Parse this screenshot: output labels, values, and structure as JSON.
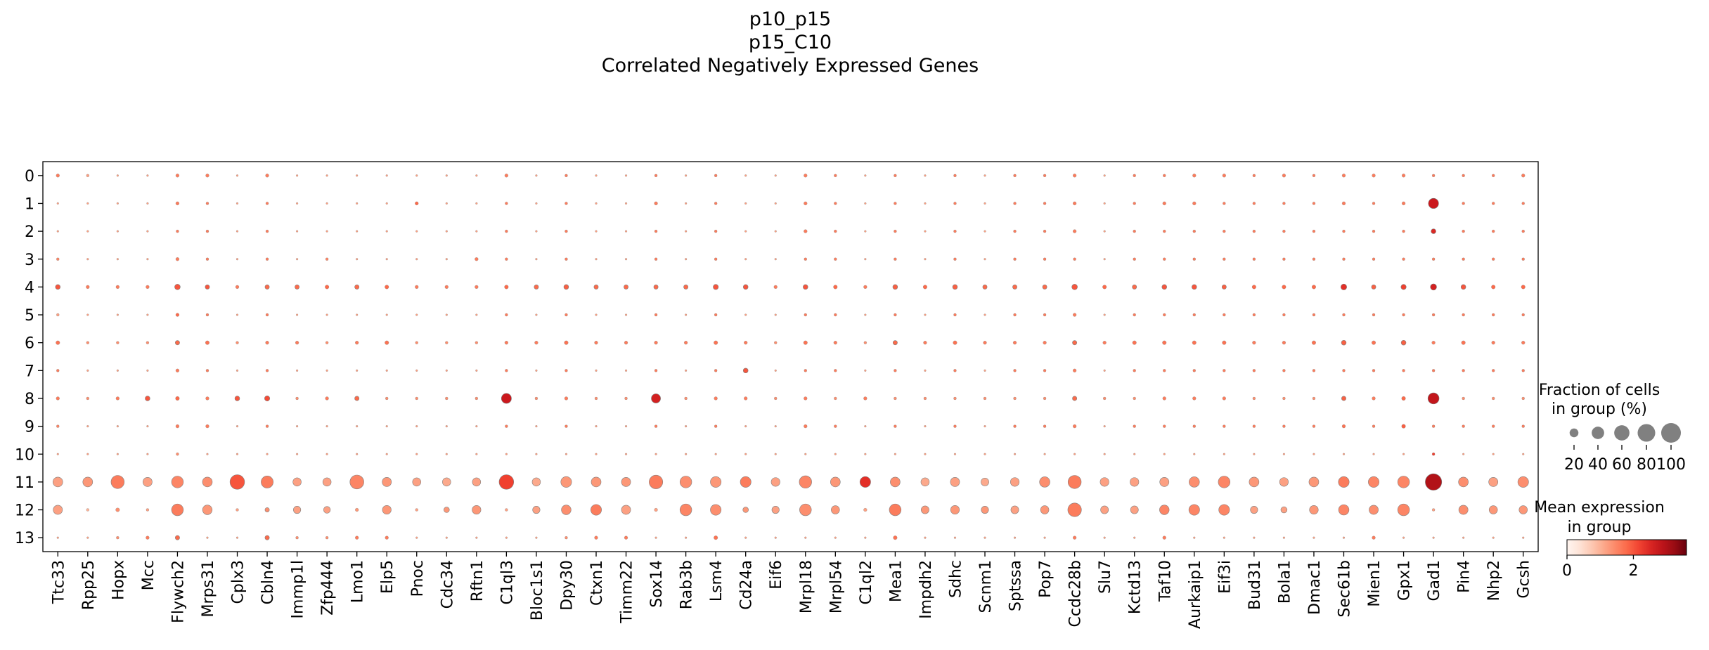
{
  "chart_data": {
    "type": "dotplot",
    "title_lines": [
      "p10_p15",
      "p15_C10",
      "Correlated Negatively Expressed Genes"
    ],
    "genes": [
      "Ttc33",
      "Rpp25",
      "Hopx",
      "Mcc",
      "Flywch2",
      "Mrps31",
      "Cplx3",
      "Cbln4",
      "Immp1l",
      "Zfp444",
      "Lmo1",
      "Elp5",
      "Pnoc",
      "Cdc34",
      "Rftn1",
      "C1ql3",
      "Bloc1s1",
      "Dpy30",
      "Ctxn1",
      "Timm22",
      "Sox14",
      "Rab3b",
      "Lsm4",
      "Cd24a",
      "Eif6",
      "Mrpl18",
      "Mrpl54",
      "C1ql2",
      "Mea1",
      "Impdh2",
      "Sdhc",
      "Scnm1",
      "Sptssa",
      "Pop7",
      "Ccdc28b",
      "Slu7",
      "Kctd13",
      "Taf10",
      "Aurkaip1",
      "Eif3i",
      "Bud31",
      "Bola1",
      "Dmac1",
      "Sec61b",
      "Mien1",
      "Gpx1",
      "Gad1",
      "Pin4",
      "Nhp2",
      "Gcsh"
    ],
    "groups": [
      "0",
      "1",
      "2",
      "3",
      "4",
      "5",
      "6",
      "7",
      "8",
      "9",
      "10",
      "11",
      "12",
      "13"
    ],
    "fraction_matrix": [
      [
        3,
        2,
        1,
        1,
        3,
        3,
        1,
        3,
        1,
        1,
        1,
        1,
        1,
        1,
        1,
        3,
        1,
        2,
        1,
        1,
        2,
        1,
        2,
        1,
        1,
        3,
        2,
        1,
        2,
        1,
        2,
        1,
        2,
        2,
        3,
        1,
        2,
        2,
        3,
        3,
        2,
        3,
        2,
        3,
        3,
        3,
        2,
        2,
        2,
        3
      ],
      [
        1,
        1,
        1,
        1,
        3,
        2,
        1,
        2,
        1,
        1,
        1,
        1,
        3,
        1,
        1,
        2,
        1,
        2,
        1,
        1,
        3,
        1,
        2,
        1,
        1,
        3,
        2,
        1,
        2,
        1,
        2,
        1,
        2,
        2,
        3,
        1,
        2,
        3,
        3,
        2,
        2,
        2,
        2,
        3,
        2,
        3,
        27,
        2,
        2,
        2
      ],
      [
        1,
        1,
        1,
        1,
        2,
        2,
        1,
        2,
        1,
        1,
        1,
        1,
        1,
        1,
        1,
        2,
        1,
        2,
        1,
        1,
        2,
        1,
        2,
        1,
        1,
        3,
        2,
        1,
        2,
        1,
        2,
        1,
        2,
        2,
        3,
        1,
        2,
        2,
        2,
        2,
        2,
        2,
        2,
        2,
        2,
        2,
        6,
        2,
        2,
        2
      ],
      [
        2,
        1,
        1,
        1,
        3,
        2,
        1,
        2,
        1,
        2,
        1,
        1,
        1,
        1,
        3,
        2,
        1,
        2,
        1,
        1,
        2,
        1,
        2,
        1,
        1,
        2,
        2,
        1,
        2,
        1,
        2,
        1,
        2,
        2,
        2,
        1,
        2,
        2,
        2,
        2,
        2,
        2,
        2,
        2,
        2,
        2,
        2,
        2,
        2,
        2
      ],
      [
        6,
        3,
        3,
        3,
        8,
        5,
        3,
        5,
        5,
        4,
        5,
        4,
        3,
        3,
        3,
        4,
        5,
        6,
        5,
        5,
        5,
        5,
        7,
        6,
        3,
        6,
        4,
        3,
        6,
        4,
        6,
        5,
        5,
        5,
        8,
        4,
        5,
        6,
        6,
        5,
        4,
        4,
        4,
        9,
        5,
        7,
        10,
        6,
        4,
        4
      ],
      [
        2,
        1,
        1,
        1,
        3,
        2,
        1,
        2,
        1,
        1,
        1,
        1,
        1,
        1,
        1,
        2,
        1,
        2,
        1,
        1,
        2,
        1,
        2,
        1,
        1,
        2,
        2,
        1,
        2,
        1,
        2,
        1,
        2,
        2,
        3,
        1,
        2,
        2,
        2,
        2,
        2,
        2,
        2,
        2,
        2,
        2,
        2,
        2,
        2,
        2
      ],
      [
        4,
        2,
        2,
        2,
        5,
        4,
        2,
        3,
        3,
        2,
        3,
        4,
        2,
        2,
        2,
        3,
        3,
        4,
        3,
        3,
        3,
        3,
        4,
        3,
        2,
        4,
        3,
        2,
        5,
        3,
        4,
        3,
        3,
        3,
        5,
        3,
        4,
        4,
        4,
        4,
        3,
        3,
        4,
        6,
        4,
        6,
        3,
        4,
        3,
        3
      ],
      [
        2,
        1,
        1,
        1,
        3,
        2,
        1,
        2,
        1,
        1,
        1,
        1,
        1,
        1,
        1,
        2,
        1,
        2,
        1,
        1,
        2,
        1,
        2,
        6,
        1,
        2,
        2,
        1,
        2,
        1,
        2,
        1,
        2,
        2,
        3,
        1,
        2,
        2,
        2,
        2,
        2,
        2,
        2,
        2,
        2,
        2,
        2,
        2,
        2,
        2
      ],
      [
        3,
        2,
        3,
        6,
        4,
        3,
        6,
        7,
        2,
        3,
        5,
        2,
        2,
        2,
        2,
        26,
        2,
        3,
        2,
        2,
        22,
        2,
        3,
        3,
        2,
        3,
        2,
        3,
        2,
        2,
        2,
        2,
        2,
        2,
        5,
        2,
        2,
        3,
        3,
        3,
        2,
        2,
        2,
        5,
        3,
        4,
        32,
        2,
        2,
        2
      ],
      [
        2,
        1,
        1,
        1,
        3,
        3,
        1,
        2,
        1,
        1,
        1,
        1,
        1,
        1,
        1,
        2,
        1,
        2,
        1,
        1,
        2,
        1,
        2,
        1,
        1,
        3,
        2,
        1,
        2,
        1,
        2,
        1,
        2,
        2,
        3,
        1,
        2,
        2,
        2,
        2,
        2,
        2,
        2,
        3,
        2,
        4,
        2,
        2,
        2,
        2
      ],
      [
        1,
        1,
        1,
        1,
        2,
        1,
        1,
        1,
        1,
        1,
        1,
        1,
        1,
        1,
        1,
        1,
        1,
        1,
        1,
        1,
        1,
        1,
        1,
        1,
        1,
        1,
        1,
        1,
        1,
        1,
        1,
        1,
        1,
        1,
        1,
        1,
        1,
        1,
        1,
        1,
        1,
        1,
        1,
        1,
        1,
        1,
        2,
        1,
        1,
        1
      ],
      [
        25,
        25,
        45,
        22,
        36,
        25,
        55,
        38,
        18,
        18,
        50,
        22,
        18,
        18,
        18,
        55,
        18,
        30,
        25,
        22,
        48,
        36,
        30,
        30,
        20,
        40,
        25,
        30,
        25,
        18,
        22,
        16,
        20,
        28,
        45,
        20,
        20,
        22,
        28,
        36,
        25,
        20,
        25,
        30,
        30,
        36,
        70,
        25,
        22,
        30
      ],
      [
        22,
        2,
        4,
        2,
        36,
        24,
        2,
        5,
        14,
        12,
        3,
        20,
        2,
        8,
        20,
        2,
        14,
        24,
        30,
        22,
        3,
        36,
        30,
        8,
        14,
        36,
        18,
        3,
        36,
        16,
        20,
        14,
        16,
        18,
        48,
        16,
        16,
        24,
        30,
        30,
        14,
        10,
        20,
        28,
        22,
        36,
        2,
        22,
        18,
        18
      ],
      [
        1,
        1,
        2,
        3,
        5,
        1,
        1,
        5,
        2,
        2,
        3,
        3,
        1,
        1,
        1,
        1,
        1,
        2,
        3,
        3,
        1,
        1,
        4,
        1,
        1,
        1,
        1,
        1,
        4,
        1,
        1,
        1,
        1,
        1,
        3,
        1,
        1,
        3,
        1,
        1,
        1,
        1,
        1,
        1,
        3,
        1,
        1,
        1,
        1,
        1
      ]
    ],
    "expression_matrix": [
      [
        1.6,
        1.2,
        1.2,
        1.2,
        1.6,
        1.6,
        1.2,
        1.6,
        1.2,
        1.2,
        1.2,
        1.2,
        1.2,
        1.2,
        1.2,
        1.6,
        1.2,
        1.6,
        1.2,
        1.2,
        1.6,
        1.2,
        1.6,
        1.2,
        1.2,
        1.6,
        1.6,
        1.2,
        1.6,
        1.2,
        1.6,
        1.2,
        1.6,
        1.6,
        1.6,
        1.2,
        1.6,
        1.6,
        1.6,
        1.6,
        1.6,
        1.6,
        1.6,
        1.6,
        1.6,
        1.6,
        1.6,
        1.6,
        1.6,
        1.6
      ],
      [
        1.2,
        1.2,
        1.2,
        1.2,
        1.6,
        1.6,
        1.2,
        1.6,
        1.2,
        1.2,
        1.2,
        1.2,
        1.8,
        1.2,
        1.2,
        1.6,
        1.2,
        1.6,
        1.2,
        1.2,
        1.6,
        1.2,
        1.6,
        1.2,
        1.2,
        1.6,
        1.6,
        1.2,
        1.6,
        1.2,
        1.6,
        1.2,
        1.6,
        1.6,
        1.6,
        1.2,
        1.6,
        1.6,
        1.6,
        1.6,
        1.6,
        1.6,
        1.6,
        1.6,
        1.6,
        1.6,
        2.7,
        1.6,
        1.6,
        1.6
      ],
      [
        1.2,
        1.2,
        1.2,
        1.2,
        1.6,
        1.6,
        1.2,
        1.6,
        1.2,
        1.2,
        1.2,
        1.2,
        1.2,
        1.2,
        1.2,
        1.6,
        1.2,
        1.6,
        1.2,
        1.2,
        1.6,
        1.2,
        1.6,
        1.2,
        1.2,
        1.6,
        1.6,
        1.2,
        1.6,
        1.2,
        1.6,
        1.2,
        1.6,
        1.6,
        1.6,
        1.2,
        1.6,
        1.6,
        1.6,
        1.6,
        1.6,
        1.6,
        1.6,
        1.6,
        1.6,
        1.6,
        2.5,
        1.6,
        1.6,
        1.6
      ],
      [
        1.5,
        1.2,
        1.2,
        1.2,
        1.6,
        1.6,
        1.2,
        1.6,
        1.2,
        1.5,
        1.2,
        1.2,
        1.2,
        1.2,
        1.6,
        1.6,
        1.2,
        1.6,
        1.2,
        1.2,
        1.6,
        1.2,
        1.6,
        1.2,
        1.2,
        1.6,
        1.6,
        1.2,
        1.6,
        1.2,
        1.6,
        1.2,
        1.6,
        1.6,
        1.6,
        1.2,
        1.6,
        1.6,
        1.6,
        1.6,
        1.6,
        1.6,
        1.6,
        1.6,
        1.6,
        1.6,
        1.6,
        1.6,
        1.6,
        1.6
      ],
      [
        2.0,
        1.6,
        1.6,
        1.6,
        2.0,
        2.0,
        1.6,
        1.8,
        1.8,
        1.8,
        1.8,
        1.8,
        1.6,
        1.6,
        1.6,
        1.8,
        1.8,
        1.9,
        1.8,
        1.8,
        1.8,
        1.8,
        2.0,
        2.0,
        1.6,
        2.0,
        1.8,
        1.6,
        1.9,
        1.8,
        1.9,
        1.8,
        1.8,
        1.8,
        2.0,
        1.8,
        1.8,
        2.0,
        2.0,
        1.9,
        1.8,
        1.8,
        1.8,
        2.4,
        1.9,
        2.2,
        2.6,
        2.0,
        1.8,
        1.8
      ],
      [
        1.2,
        1.2,
        1.2,
        1.2,
        1.8,
        1.6,
        1.2,
        1.6,
        1.2,
        1.2,
        1.2,
        1.2,
        1.2,
        1.2,
        1.2,
        1.6,
        1.2,
        1.6,
        1.2,
        1.2,
        1.6,
        1.2,
        1.6,
        1.2,
        1.2,
        1.6,
        1.6,
        1.2,
        1.6,
        1.2,
        1.6,
        1.2,
        1.6,
        1.6,
        1.6,
        1.2,
        1.6,
        1.6,
        1.6,
        1.6,
        1.6,
        1.6,
        1.6,
        1.6,
        1.6,
        1.6,
        1.6,
        1.6,
        1.6,
        1.6
      ],
      [
        1.7,
        1.4,
        1.4,
        1.4,
        1.8,
        1.7,
        1.4,
        1.6,
        1.6,
        1.4,
        1.6,
        1.7,
        1.4,
        1.4,
        1.4,
        1.6,
        1.6,
        1.7,
        1.6,
        1.6,
        1.6,
        1.6,
        1.7,
        1.6,
        1.4,
        1.7,
        1.6,
        1.4,
        1.8,
        1.6,
        1.7,
        1.6,
        1.6,
        1.6,
        1.8,
        1.6,
        1.7,
        1.7,
        1.7,
        1.7,
        1.6,
        1.6,
        1.7,
        1.9,
        1.7,
        1.9,
        1.6,
        1.7,
        1.6,
        1.6
      ],
      [
        1.6,
        1.2,
        1.2,
        1.2,
        1.6,
        1.6,
        1.2,
        1.6,
        1.2,
        1.2,
        1.2,
        1.2,
        1.2,
        1.2,
        1.2,
        1.6,
        1.2,
        1.6,
        1.2,
        1.2,
        1.6,
        1.2,
        1.6,
        2.0,
        1.2,
        1.6,
        1.6,
        1.2,
        1.6,
        1.2,
        1.6,
        1.2,
        1.6,
        1.6,
        1.6,
        1.2,
        1.6,
        1.6,
        1.6,
        1.6,
        1.6,
        1.6,
        1.6,
        1.6,
        1.6,
        1.6,
        1.6,
        1.6,
        1.6,
        1.6
      ],
      [
        1.6,
        1.4,
        1.6,
        2.0,
        1.8,
        1.6,
        2.0,
        2.1,
        1.4,
        1.6,
        1.8,
        1.4,
        1.4,
        1.4,
        1.4,
        2.7,
        1.4,
        1.6,
        1.4,
        1.4,
        2.6,
        1.4,
        1.6,
        1.6,
        1.4,
        1.6,
        1.4,
        1.6,
        1.4,
        1.4,
        1.4,
        1.4,
        1.4,
        1.4,
        1.8,
        1.4,
        1.4,
        1.6,
        1.6,
        1.6,
        1.4,
        1.4,
        1.4,
        1.9,
        1.6,
        1.8,
        2.8,
        1.4,
        1.4,
        1.4
      ],
      [
        1.5,
        1.2,
        1.2,
        1.2,
        1.6,
        1.6,
        1.2,
        1.6,
        1.2,
        1.2,
        1.2,
        1.2,
        1.2,
        1.2,
        1.2,
        1.6,
        1.2,
        1.6,
        1.2,
        1.2,
        1.6,
        1.2,
        1.6,
        1.2,
        1.2,
        1.6,
        1.6,
        1.2,
        1.6,
        1.2,
        1.6,
        1.2,
        1.6,
        1.6,
        1.6,
        1.2,
        1.6,
        1.6,
        1.6,
        1.6,
        1.6,
        1.6,
        1.6,
        1.7,
        1.6,
        1.9,
        1.6,
        1.6,
        1.6,
        1.6
      ],
      [
        1.2,
        1.2,
        1.2,
        1.2,
        1.4,
        1.2,
        1.2,
        1.2,
        1.2,
        1.2,
        1.2,
        1.2,
        1.2,
        1.2,
        1.2,
        1.2,
        1.2,
        1.2,
        1.2,
        1.2,
        1.2,
        1.2,
        1.2,
        1.2,
        1.2,
        1.2,
        1.2,
        1.2,
        1.2,
        1.2,
        1.2,
        1.2,
        1.2,
        1.2,
        1.2,
        1.2,
        1.2,
        1.2,
        1.2,
        1.2,
        1.2,
        1.2,
        1.2,
        1.2,
        1.2,
        1.2,
        2.2,
        1.2,
        1.2,
        1.2
      ],
      [
        1.2,
        1.3,
        1.6,
        1.2,
        1.5,
        1.4,
        2.0,
        1.6,
        1.2,
        1.2,
        1.5,
        1.3,
        1.2,
        1.1,
        1.2,
        2.2,
        1.1,
        1.3,
        1.3,
        1.3,
        1.6,
        1.4,
        1.3,
        1.6,
        1.2,
        1.5,
        1.3,
        2.4,
        1.4,
        1.1,
        1.2,
        1.1,
        1.2,
        1.4,
        1.6,
        1.2,
        1.2,
        1.2,
        1.4,
        1.5,
        1.3,
        1.2,
        1.3,
        1.6,
        1.5,
        1.5,
        3.0,
        1.4,
        1.2,
        1.4
      ],
      [
        1.2,
        1.0,
        1.4,
        1.2,
        1.6,
        1.3,
        1.2,
        1.4,
        1.2,
        1.2,
        1.3,
        1.3,
        1.2,
        1.3,
        1.3,
        1.2,
        1.2,
        1.4,
        1.6,
        1.2,
        1.2,
        1.5,
        1.4,
        1.3,
        1.2,
        1.4,
        1.3,
        1.2,
        1.6,
        1.3,
        1.3,
        1.3,
        1.2,
        1.3,
        1.6,
        1.2,
        1.2,
        1.5,
        1.5,
        1.5,
        1.2,
        1.2,
        1.3,
        1.5,
        1.4,
        1.5,
        1.2,
        1.4,
        1.3,
        1.3
      ],
      [
        1.2,
        1.2,
        1.4,
        1.6,
        1.8,
        1.2,
        1.2,
        1.8,
        1.4,
        1.4,
        1.6,
        1.6,
        1.2,
        1.2,
        1.2,
        1.2,
        1.2,
        1.4,
        1.6,
        1.6,
        1.2,
        1.2,
        1.7,
        1.2,
        1.2,
        1.2,
        1.2,
        1.2,
        1.7,
        1.2,
        1.2,
        1.2,
        1.2,
        1.2,
        1.6,
        1.2,
        1.2,
        1.6,
        1.2,
        1.2,
        1.2,
        1.2,
        1.2,
        1.2,
        1.6,
        1.2,
        1.2,
        1.2,
        1.2,
        1.2
      ]
    ],
    "size_legend": {
      "title_lines": [
        "Fraction of cells",
        "in group (%)"
      ],
      "values": [
        20,
        40,
        60,
        80,
        100
      ],
      "labels": [
        "20",
        "40",
        "60",
        "80",
        "100"
      ]
    },
    "color_legend": {
      "title_lines": [
        "Mean expression",
        "in group"
      ],
      "vmin": 0,
      "vmax": 3.6,
      "ticks": [
        0,
        2
      ],
      "tick_labels": [
        "0",
        "2"
      ],
      "colormap": "Reds"
    },
    "colors": {
      "size_legend_fill": "#808080",
      "dot_edge": "#808080",
      "frame": "#000000"
    }
  }
}
